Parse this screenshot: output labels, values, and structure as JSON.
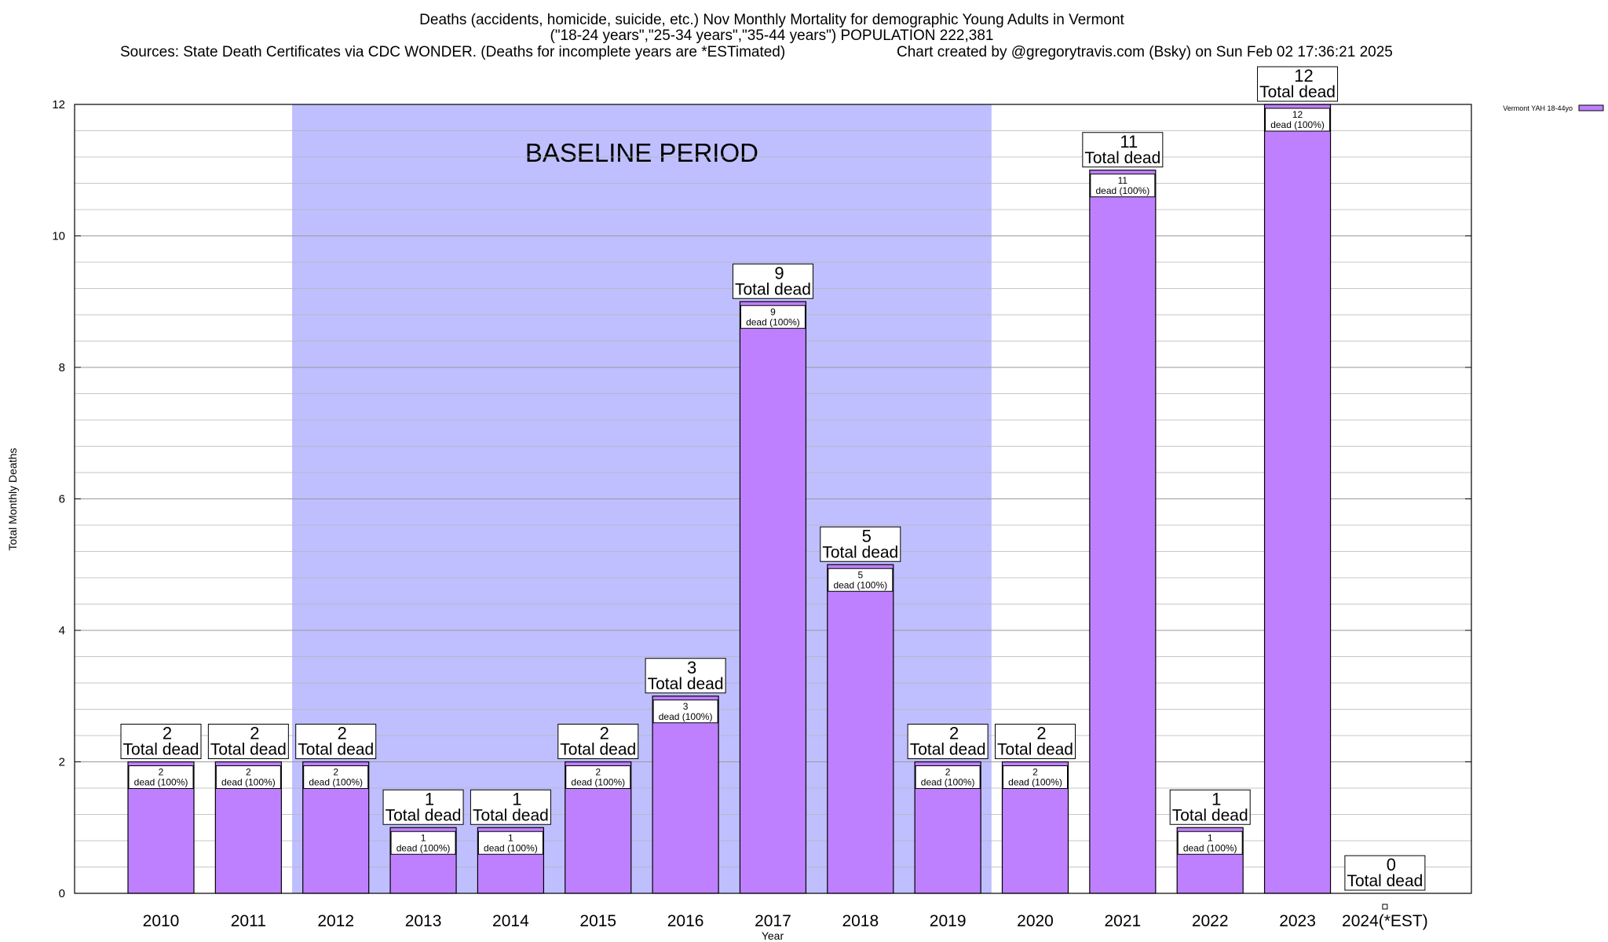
{
  "chart_data": {
    "type": "bar",
    "title_lines": [
      "Deaths (accidents, homicide, suicide, etc.) Nov Monthly Mortality for demographic Young Adults in Vermont",
      "(\"18-24 years\",\"25-34 years\",\"35-44 years\") POPULATION 222,381"
    ],
    "sources_text": "Sources: State Death Certificates via CDC WONDER. (Deaths for incomplete years are *ESTimated)",
    "credit_text": "Chart created by @gregorytravis.com (Bsky) on Sun Feb 02 17:36:21 2025",
    "xlabel": "Year",
    "ylabel": "Total Monthly Deaths",
    "ylim": [
      0,
      12
    ],
    "yticks": [
      0,
      2,
      4,
      6,
      8,
      10,
      12
    ],
    "categories": [
      "2010",
      "2011",
      "2012",
      "2013",
      "2014",
      "2015",
      "2016",
      "2017",
      "2018",
      "2019",
      "2020",
      "2021",
      "2022",
      "2023",
      "2024(*EST)"
    ],
    "series": [
      {
        "name": "Vermont YAH 18-44yo",
        "values": [
          2,
          2,
          2,
          1,
          1,
          2,
          3,
          9,
          5,
          2,
          2,
          11,
          1,
          12,
          0
        ],
        "color": "#bf80ff"
      }
    ],
    "total_label_suffix": "Total dead",
    "inner_label_suffix": "dead (100%)",
    "baseline_period": {
      "label": "BASELINE PERIOD",
      "start_category": "2012",
      "end_category": "2019",
      "color": "#bfbfff"
    },
    "grid": true,
    "legend_placement": "top-right, outside plot"
  }
}
